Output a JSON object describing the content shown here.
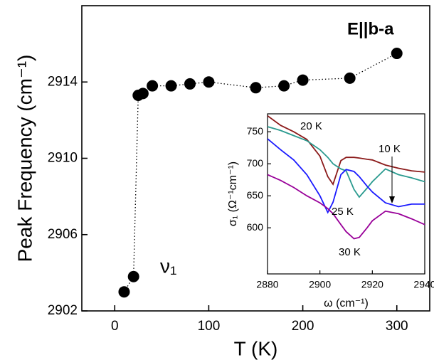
{
  "chart_data": [
    {
      "type": "scatter",
      "xlabel": "T (K)",
      "ylabel": "Peak Frequency (cm⁻¹)",
      "annotations": [
        "E||b-a",
        "ν₁"
      ],
      "x": [
        10,
        20,
        25,
        30,
        40,
        60,
        80,
        100,
        150,
        180,
        200,
        250,
        300
      ],
      "values": [
        2903.0,
        2903.8,
        2913.3,
        2913.4,
        2913.8,
        2913.8,
        2913.9,
        2914.0,
        2913.7,
        2913.8,
        2914.1,
        2914.2,
        2915.5
      ],
      "color": "#000000",
      "line_style": "dotted",
      "xlim": [
        -35,
        335
      ],
      "xticks": [
        0,
        100,
        200,
        300
      ],
      "ylim": [
        2902,
        2918
      ],
      "yticks": [
        2902,
        2906,
        2910,
        2914
      ]
    },
    {
      "type": "line",
      "xlabel": "ω (cm⁻¹)",
      "ylabel": "σ₁ (Ω⁻¹cm⁻¹)",
      "x": [
        2880,
        2885,
        2890,
        2895,
        2900,
        2903,
        2905,
        2908,
        2910,
        2913,
        2915,
        2918,
        2920,
        2925,
        2930,
        2935,
        2940
      ],
      "series": [
        {
          "name": "20 K",
          "color": "#8b1a1a",
          "values": [
            775,
            760,
            750,
            738,
            712,
            680,
            668,
            705,
            710,
            710,
            709,
            707,
            706,
            698,
            693,
            689,
            687
          ]
        },
        {
          "name": "10 K",
          "color": "#2a9a8f",
          "values": [
            758,
            752,
            744,
            736,
            722,
            710,
            700,
            692,
            689,
            660,
            648,
            662,
            672,
            692,
            683,
            678,
            672
          ]
        },
        {
          "name": "25 K",
          "color": "#1a1aff",
          "values": [
            739,
            722,
            706,
            683,
            650,
            624,
            640,
            683,
            691,
            688,
            680,
            665,
            656,
            639,
            633,
            637,
            637
          ]
        },
        {
          "name": "30 K",
          "color": "#990099",
          "values": [
            683,
            674,
            663,
            650,
            639,
            630,
            622,
            605,
            594,
            583,
            585,
            600,
            611,
            626,
            622,
            614,
            605
          ]
        }
      ],
      "xlim": [
        2880,
        2940
      ],
      "xticks": [
        2880,
        2900,
        2920,
        2940
      ],
      "ylim": [
        528,
        778
      ],
      "yticks": [
        600,
        650,
        700,
        750
      ]
    }
  ]
}
